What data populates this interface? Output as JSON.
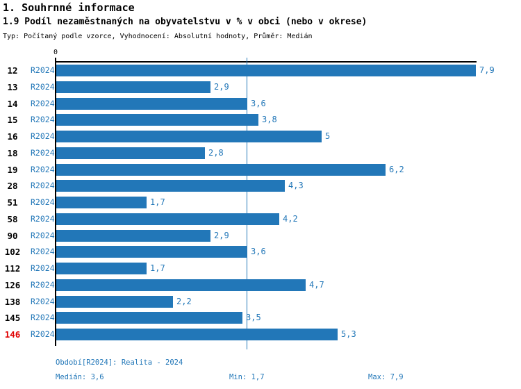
{
  "header": {
    "section_title": "1. Souhrnné informace",
    "chart_title": "1.9 Podíl nezaměstnaných na obyvatelstvu v % v obci (nebo v okrese)",
    "meta": "Typ: Počítaný podle vzorce, Vyhodnocení: Absolutní hodnoty, Průměr: Medián"
  },
  "chart_data": {
    "type": "bar",
    "orientation": "horizontal",
    "title": "1.9 Podíl nezaměstnaných na obyvatelstvu v % v obci (nebo v okrese)",
    "series_label": "R2024",
    "categories": [
      "12",
      "13",
      "14",
      "15",
      "16",
      "18",
      "19",
      "28",
      "51",
      "58",
      "90",
      "102",
      "112",
      "126",
      "138",
      "145",
      "146"
    ],
    "values": [
      7.9,
      2.9,
      3.6,
      3.8,
      5,
      2.8,
      6.2,
      4.3,
      1.7,
      4.2,
      2.9,
      3.6,
      1.7,
      4.7,
      2.2,
      3.5,
      5.3
    ],
    "value_labels": [
      "7,9",
      "2,9",
      "3,6",
      "3,8",
      "5",
      "2,8",
      "6,2",
      "4,3",
      "1,7",
      "4,2",
      "2,9",
      "3,6",
      "1,7",
      "4,7",
      "2,2",
      "3,5",
      "5,3"
    ],
    "highlighted_category": "146",
    "axis": {
      "min": 0,
      "max": 7.9,
      "zero_label": "0"
    },
    "median_line_value": 3.6,
    "grid": "single-median-gridline",
    "legend": "none",
    "median": 3.6,
    "min": 1.7,
    "max": 7.9
  },
  "colors": {
    "bar_blue": "#2277b8",
    "text_blue": "#2277b8",
    "highlight_red": "#e00000",
    "axis_black": "#000000"
  },
  "footer": {
    "period": "Období[R2024]: Realita - 2024",
    "median": "Medián: 3,6",
    "min": "Min: 1,7",
    "max": "Max: 7,9"
  }
}
